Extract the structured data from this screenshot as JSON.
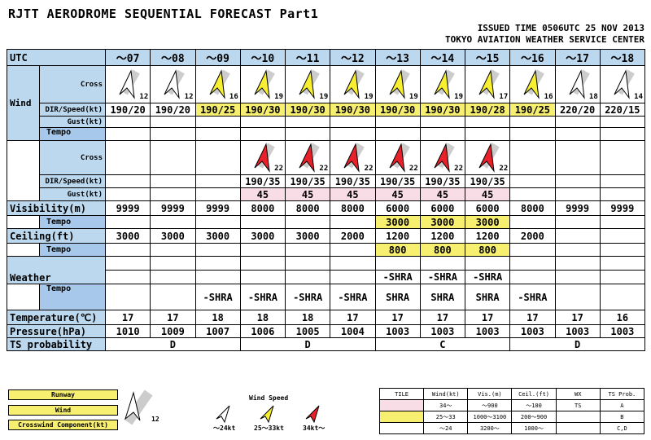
{
  "title": "RJTT  AERODROME SEQUENTIAL FORECAST Part1",
  "issued": "ISSUED TIME 0506UTC 25 NOV 2013",
  "center": "TOKYO AVIATION WEATHER SERVICE CENTER",
  "labels": {
    "utc": "UTC",
    "cross": "Cross",
    "dir": "DIR/Speed(kt)",
    "gust": "Gust(kt)",
    "wind": "Wind",
    "tempo": "Tempo",
    "visibility": "Visibility(m)",
    "ceiling": "Ceiling(ft)",
    "weather": "Weather",
    "temperature": "Temperature(℃)",
    "pressure": "Pressure(hPa)",
    "ts": "TS probability"
  },
  "hours": [
    "～07",
    "～08",
    "～09",
    "～10",
    "～11",
    "～12",
    "～13",
    "～14",
    "～15",
    "～16",
    "～17",
    "～18"
  ],
  "wind": {
    "cross": [
      "12",
      "12",
      "16",
      "19",
      "19",
      "19",
      "19",
      "19",
      "17",
      "16",
      "18",
      "14"
    ],
    "cross_color": [
      "white",
      "white",
      "yellow",
      "yellow",
      "yellow",
      "yellow",
      "yellow",
      "yellow",
      "yellow",
      "yellow",
      "white",
      "white"
    ],
    "dir": [
      "190/20",
      "190/20",
      "190/25",
      "190/30",
      "190/30",
      "190/30",
      "190/30",
      "190/30",
      "190/28",
      "190/25",
      "220/20",
      "220/15"
    ],
    "dir_color": [
      "none",
      "none",
      "yellow",
      "yellow",
      "yellow",
      "yellow",
      "yellow",
      "yellow",
      "yellow",
      "yellow",
      "none",
      "none"
    ],
    "tempo_cross": [
      "",
      "",
      "",
      "22",
      "22",
      "22",
      "22",
      "22",
      "22",
      "",
      "",
      ""
    ],
    "tempo_dir": [
      "",
      "",
      "",
      "190/35",
      "190/35",
      "190/35",
      "190/35",
      "190/35",
      "190/35",
      "",
      "",
      ""
    ],
    "tempo_gust": [
      "",
      "",
      "",
      "45",
      "45",
      "45",
      "45",
      "45",
      "45",
      "",
      "",
      ""
    ]
  },
  "visibility": [
    "9999",
    "9999",
    "9999",
    "8000",
    "8000",
    "8000",
    "6000",
    "6000",
    "6000",
    "8000",
    "9999",
    "9999"
  ],
  "visibility_tempo": [
    "",
    "",
    "",
    "",
    "",
    "",
    "3000",
    "3000",
    "3000",
    "",
    "",
    ""
  ],
  "ceiling": [
    "3000",
    "3000",
    "3000",
    "3000",
    "3000",
    "2000",
    "1200",
    "1200",
    "1200",
    "2000",
    "",
    ""
  ],
  "ceiling_tempo": [
    "",
    "",
    "",
    "",
    "",
    "",
    "800",
    "800",
    "800",
    "",
    "",
    ""
  ],
  "weather": [
    "",
    "",
    "",
    "",
    "",
    "",
    "-SHRA",
    "-SHRA",
    "-SHRA",
    "",
    "",
    ""
  ],
  "weather_tempo": [
    "",
    "",
    "-SHRA",
    "-SHRA",
    "-SHRA",
    "-SHRA",
    "SHRA",
    "SHRA",
    "SHRA",
    "-SHRA",
    "",
    ""
  ],
  "temperature": [
    "17",
    "17",
    "18",
    "18",
    "18",
    "17",
    "17",
    "17",
    "17",
    "17",
    "17",
    "16"
  ],
  "pressure": [
    "1010",
    "1009",
    "1007",
    "1006",
    "1005",
    "1004",
    "1003",
    "1003",
    "1003",
    "1003",
    "1003",
    "1003"
  ],
  "ts": [
    "D",
    "D",
    "C",
    "D"
  ],
  "legend": {
    "runway": "Runway",
    "wind": "Wind",
    "crosswind": "Crosswind Component(kt)",
    "sample_speed": "12",
    "wind_speed": "Wind Speed",
    "low": "～24kt",
    "mid": "25～33kt",
    "high": "34kt～",
    "table_headers": [
      "TILE",
      "Wind(kt)",
      "Vis.(m)",
      "Ceil.(ft)",
      "WX",
      "TS Prob."
    ],
    "table_rows": [
      [
        "",
        "34～",
        "～900",
        "～100",
        "TS",
        "A"
      ],
      [
        "",
        "25～33",
        "1000～3100",
        "200～900",
        "",
        "B"
      ],
      [
        "",
        "～24",
        "3200～",
        "1000～",
        "",
        "C,D"
      ]
    ]
  },
  "colors": {
    "header": "#bcd8ee",
    "tempo": "#a7c8ea",
    "yellow": "#f7ef70",
    "pink": "#f9dde6",
    "red": "#e8202a"
  }
}
